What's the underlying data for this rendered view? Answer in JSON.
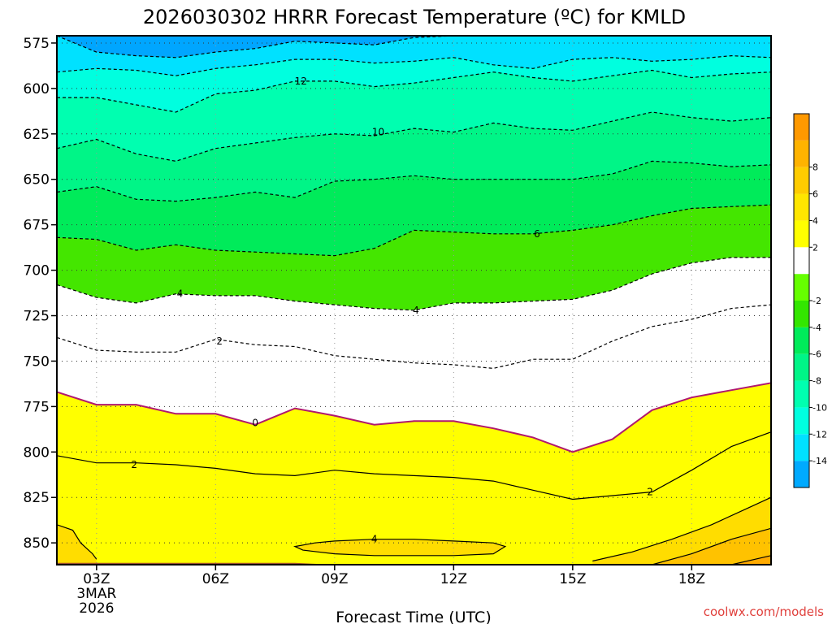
{
  "chart_data": {
    "type": "area",
    "title": "2026030302 HRRR Forecast Temperature (ºC) for KMLD",
    "xlabel": "Forecast Time (UTC)",
    "ylabel": "",
    "credit": "coolwx.com/models",
    "x_hours": [
      2,
      3,
      4,
      5,
      6,
      7,
      8,
      9,
      10,
      11,
      12,
      13,
      14,
      15,
      16,
      17,
      18,
      19,
      20
    ],
    "xlim": [
      2,
      20
    ],
    "ylim": [
      862,
      571
    ],
    "yticks": [
      575,
      600,
      625,
      650,
      675,
      700,
      725,
      750,
      775,
      800,
      825,
      850
    ],
    "xticks": [
      {
        "hour": 3,
        "label": "03Z",
        "sub1": "3MAR",
        "sub2": "2026"
      },
      {
        "hour": 6,
        "label": "06Z",
        "sub1": "",
        "sub2": ""
      },
      {
        "hour": 9,
        "label": "09Z",
        "sub1": "",
        "sub2": ""
      },
      {
        "hour": 12,
        "label": "12Z",
        "sub1": "",
        "sub2": ""
      },
      {
        "hour": 15,
        "label": "15Z",
        "sub1": "",
        "sub2": ""
      },
      {
        "hour": 18,
        "label": "18Z",
        "sub1": "",
        "sub2": ""
      }
    ],
    "ground_pressure": [
      861,
      861,
      861,
      861,
      861,
      861,
      861,
      862,
      862,
      862,
      862,
      862,
      862,
      862,
      862,
      862,
      862,
      862,
      862
    ],
    "isotherms": [
      {
        "temp": -16,
        "p": [
          571,
          580,
          582,
          583,
          580,
          578,
          574,
          575,
          576,
          572,
          571,
          571,
          571,
          571,
          571,
          571,
          571,
          571,
          571
        ]
      },
      {
        "temp": -14,
        "p": [
          591,
          589,
          590,
          593,
          589,
          587,
          584,
          584,
          586,
          585,
          583,
          587,
          589,
          584,
          583,
          585,
          584,
          582,
          583
        ]
      },
      {
        "temp": -12,
        "p": [
          605,
          605,
          609,
          613,
          603,
          601,
          596,
          596,
          599,
          597,
          594,
          591,
          594,
          596,
          593,
          590,
          594,
          592,
          591
        ]
      },
      {
        "temp": -10,
        "p": [
          633,
          628,
          636,
          640,
          633,
          630,
          627,
          625,
          626,
          622,
          624,
          619,
          622,
          623,
          618,
          613,
          616,
          618,
          616
        ]
      },
      {
        "temp": -8,
        "p": [
          657,
          654,
          661,
          662,
          660,
          657,
          660,
          651,
          650,
          648,
          650,
          650,
          650,
          650,
          647,
          640,
          641,
          643,
          642
        ]
      },
      {
        "temp": -6,
        "p": [
          682,
          683,
          689,
          686,
          689,
          690,
          691,
          692,
          688,
          678,
          679,
          680,
          680,
          678,
          675,
          670,
          666,
          665,
          664
        ]
      },
      {
        "temp": -4,
        "p": [
          708,
          715,
          718,
          713,
          714,
          714,
          717,
          719,
          721,
          722,
          718,
          718,
          717,
          716,
          711,
          702,
          696,
          693,
          693
        ]
      },
      {
        "temp": -2,
        "p": [
          737,
          744,
          745,
          745,
          738,
          741,
          742,
          747,
          749,
          751,
          752,
          754,
          749,
          749,
          739,
          731,
          727,
          721,
          719
        ]
      },
      {
        "temp": 0,
        "p": [
          767,
          774,
          774,
          779,
          779,
          785,
          776,
          780,
          785,
          783,
          783,
          787,
          792,
          800,
          793,
          777,
          770,
          766,
          762
        ]
      },
      {
        "temp": 2,
        "p": [
          802,
          806,
          806,
          807,
          809,
          812,
          813,
          810,
          812,
          813,
          814,
          816,
          821,
          826,
          824,
          822,
          810,
          797,
          789
        ]
      }
    ],
    "warm_contour_4": {
      "temp": 4,
      "hours": [
        8.0,
        8.5,
        9.0,
        10.0,
        11.0,
        12.0,
        13.0,
        13.3,
        13.0,
        12.0,
        11.0,
        10.0,
        9.0,
        8.2,
        8.0
      ],
      "p": [
        852,
        850,
        849,
        848,
        848,
        849,
        850,
        852,
        856,
        857,
        857,
        857,
        856,
        854,
        852
      ]
    },
    "corner_contour_4": {
      "temp": 4,
      "hours": [
        2.0,
        2.4,
        2.6,
        2.9,
        3.0
      ],
      "p": [
        840,
        843,
        850,
        856,
        859
      ]
    },
    "warm_wedges": [
      {
        "temp": 4,
        "hours": [
          15.5,
          16.5,
          17.5,
          18.5,
          19.5,
          20.0
        ],
        "p": [
          860,
          855,
          848,
          840,
          830,
          825
        ]
      },
      {
        "temp": 6,
        "hours": [
          17.0,
          18.0,
          19.0,
          20.0
        ],
        "p": [
          862,
          856,
          848,
          842
        ]
      },
      {
        "temp": 8,
        "hours": [
          19.0,
          20.0
        ],
        "p": [
          862,
          857
        ]
      }
    ],
    "contour_labels": [
      {
        "text": "12",
        "hour": 8.15,
        "p": 596
      },
      {
        "text": "10",
        "hour": 10.1,
        "p": 624
      },
      {
        "text": "6",
        "hour": 14.1,
        "p": 680
      },
      {
        "text": "4",
        "hour": 5.1,
        "p": 713
      },
      {
        "text": "4",
        "hour": 11.05,
        "p": 722
      },
      {
        "text": "2",
        "hour": 6.1,
        "p": 739
      },
      {
        "text": "0",
        "hour": 7.0,
        "p": 784
      },
      {
        "text": "2",
        "hour": 3.95,
        "p": 807
      },
      {
        "text": "2",
        "hour": 16.95,
        "p": 822
      },
      {
        "text": "4",
        "hour": 10.0,
        "p": 848
      }
    ],
    "colorbar": {
      "colors": [
        "#00aaff",
        "#00e1ff",
        "#00ffdf",
        "#00ffb0",
        "#00f587",
        "#00eb5a",
        "#33e600",
        "#66ff00",
        "#ffffff",
        "#ffff00",
        "#ffe600",
        "#ffcc00",
        "#ffb300",
        "#ff9900"
      ],
      "tick_labels": [
        "-14",
        "-12",
        "-10",
        "-8",
        "-6",
        "-4",
        "-2",
        "2",
        "4",
        "6",
        "8"
      ],
      "tick_positions": [
        1,
        2,
        3,
        4,
        5,
        6,
        7,
        9,
        10,
        11,
        12
      ]
    },
    "fill_levels": [
      {
        "temp": -16,
        "color": "#00a6ff"
      },
      {
        "temp": -14,
        "color": "#00e1ff"
      },
      {
        "temp": -12,
        "color": "#00ffdf"
      },
      {
        "temp": -10,
        "color": "#00ffb0"
      },
      {
        "temp": -8,
        "color": "#00f587"
      },
      {
        "temp": -6,
        "color": "#00eb5a"
      },
      {
        "temp": -4,
        "color": "#44e600"
      },
      {
        "temp": -2,
        "color": "#ffffff"
      },
      {
        "temp": 0,
        "color": "#ffffff"
      },
      {
        "temp": 2,
        "color": "#ffff00"
      }
    ],
    "wedge_colors": {
      "4": "#ffdd00",
      "6": "#ffc200",
      "8": "#ffaa00"
    },
    "ground_color": "#a0522d",
    "cold_contour_color": "#000000",
    "zero_contour_color": "#b0186e",
    "grid": true
  }
}
